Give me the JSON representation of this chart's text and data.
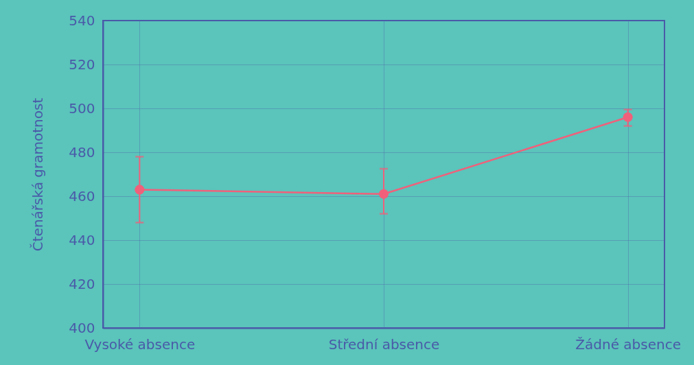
{
  "chart_data": {
    "type": "line",
    "ylabel": "Čtenářská gramotnost",
    "categories": [
      "Vysoké absence",
      "Střední absence",
      "Žádné absence"
    ],
    "series": [
      {
        "color": "#f0607a",
        "values": [
          463,
          461,
          496
        ],
        "errors": [
          [
            448,
            478
          ],
          [
            452,
            472.5
          ],
          [
            492,
            499.5
          ]
        ]
      }
    ],
    "ylim": [
      400,
      540
    ],
    "yticks": [
      400,
      420,
      440,
      460,
      480,
      500,
      520,
      540
    ],
    "grid": true,
    "marker": "circle"
  }
}
